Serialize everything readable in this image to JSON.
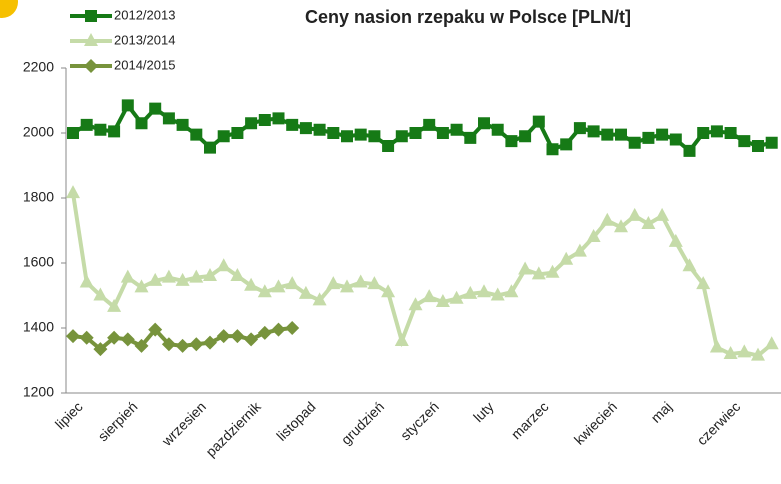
{
  "chart_data": {
    "type": "line",
    "title": "Ceny nasion rzepaku w Polsce [PLN/t]",
    "categories": [
      "lipiec",
      null,
      null,
      null,
      "sierpień",
      null,
      null,
      null,
      null,
      "wrzesien",
      null,
      null,
      null,
      "pazdziernik",
      null,
      null,
      null,
      "listopad",
      null,
      null,
      null,
      null,
      "grudzień",
      null,
      null,
      null,
      "styczeń",
      null,
      null,
      null,
      "luty",
      null,
      null,
      null,
      "marzec",
      null,
      null,
      null,
      null,
      "kwiecień",
      null,
      null,
      null,
      "maj",
      null,
      null,
      null,
      null,
      "czerwiec",
      null,
      null,
      null
    ],
    "ylim": [
      1200,
      2200
    ],
    "yticks": [
      1200,
      1400,
      1600,
      1800,
      2000,
      2200
    ],
    "grid": false,
    "legend": "top-left",
    "series": [
      {
        "name": "2012/2013",
        "color": "#167a16",
        "marker": "square",
        "values": [
          2000,
          2025,
          2010,
          2005,
          2085,
          2030,
          2075,
          2045,
          2025,
          1995,
          1955,
          1990,
          2000,
          2030,
          2040,
          2045,
          2025,
          2015,
          2010,
          2000,
          1990,
          1995,
          1990,
          1960,
          1990,
          2000,
          2025,
          2000,
          2010,
          1985,
          2030,
          2010,
          1975,
          1990,
          2035,
          1950,
          1965,
          2015,
          2005,
          1995,
          1995,
          1970,
          1985,
          1995,
          1980,
          1945,
          2000,
          2005,
          2000,
          1975,
          1960,
          1970
        ]
      },
      {
        "name": "2013/2014",
        "color": "#c5dba8",
        "marker": "triangle",
        "values": [
          1815,
          1540,
          1500,
          1465,
          1555,
          1525,
          1545,
          1555,
          1545,
          1555,
          1560,
          1590,
          1560,
          1530,
          1510,
          1525,
          1535,
          1505,
          1485,
          1535,
          1525,
          1540,
          1535,
          1510,
          1360,
          1470,
          1495,
          1480,
          1490,
          1505,
          1510,
          1500,
          1510,
          1580,
          1565,
          1570,
          1610,
          1635,
          1680,
          1730,
          1710,
          1745,
          1720,
          1745,
          1665,
          1590,
          1535,
          1340,
          1320,
          1325,
          1315,
          1350
        ]
      },
      {
        "name": "2014/2015",
        "color": "#77933c",
        "marker": "diamond",
        "values": [
          1375,
          1370,
          1335,
          1370,
          1365,
          1345,
          1395,
          1350,
          1345,
          1350,
          1355,
          1375,
          1375,
          1365,
          1385,
          1395,
          1400,
          null,
          null,
          null,
          null,
          null,
          null,
          null,
          null,
          null,
          null,
          null,
          null,
          null,
          null,
          null,
          null,
          null,
          null,
          null,
          null,
          null,
          null,
          null,
          null,
          null,
          null,
          null,
          null,
          null,
          null,
          null,
          null,
          null,
          null,
          null
        ]
      }
    ]
  }
}
